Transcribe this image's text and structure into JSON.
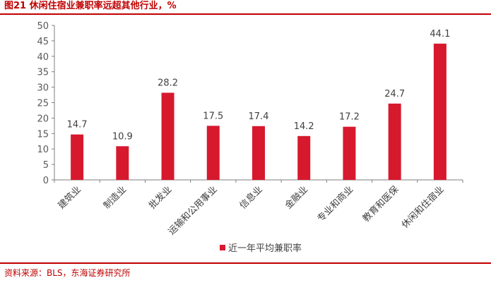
{
  "header": {
    "title": "图21 休闲住宿业兼职率远超其他行业，%"
  },
  "footer": {
    "source": "资料来源：BLS，东海证券研究所"
  },
  "colors": {
    "accent": "#C00000",
    "bar": "#D7192E",
    "axis": "#7F7F7F",
    "grid": "#D9D9D9"
  },
  "chart_data": {
    "type": "bar",
    "title": "图21 休闲住宿业兼职率远超其他行业，%",
    "categories": [
      "建筑业",
      "制造业",
      "批发业",
      "运输和公用事业",
      "信息业",
      "金融业",
      "专业和商业",
      "教育和医保",
      "休闲和住宿业"
    ],
    "series": [
      {
        "name": "近一年平均兼职率",
        "values": [
          14.7,
          10.9,
          28.2,
          17.5,
          17.4,
          14.2,
          17.2,
          24.7,
          44.1
        ]
      }
    ],
    "data_labels": [
      "14.7",
      "10.9",
      "28.2",
      "17.5",
      "17.4",
      "14.2",
      "17.2",
      "24.7",
      "44.1"
    ],
    "ylim": [
      0,
      50
    ],
    "yticks": [
      0,
      5,
      10,
      15,
      20,
      25,
      30,
      35,
      40,
      45,
      50
    ],
    "ytick_labels": [
      "0",
      "5",
      "10",
      "15",
      "20",
      "25",
      "30",
      "35",
      "40",
      "45",
      "50"
    ],
    "grid": false,
    "legend": "bottom-center",
    "xlabel": "",
    "ylabel": ""
  }
}
